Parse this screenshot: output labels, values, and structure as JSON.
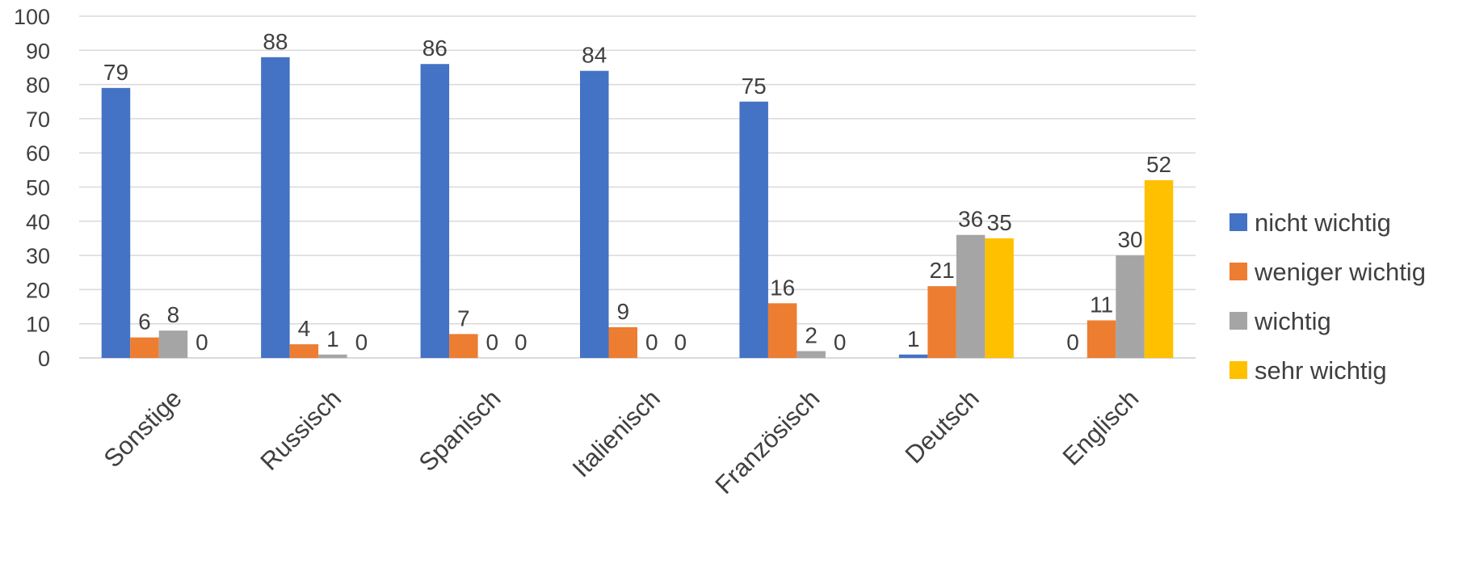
{
  "chart_data": {
    "type": "bar",
    "categories": [
      "Sonstige",
      "Russisch",
      "Spanisch",
      "Italienisch",
      "Französisch",
      "Deutsch",
      "Englisch"
    ],
    "series": [
      {
        "name": "nicht wichtig",
        "color": "#4472C4",
        "values": [
          79,
          88,
          86,
          84,
          75,
          1,
          0
        ]
      },
      {
        "name": "weniger wichtig",
        "color": "#ED7D31",
        "values": [
          6,
          4,
          7,
          9,
          16,
          21,
          11
        ]
      },
      {
        "name": "wichtig",
        "color": "#A5A5A5",
        "values": [
          8,
          1,
          0,
          0,
          2,
          36,
          30
        ]
      },
      {
        "name": "sehr wichtig",
        "color": "#FFC000",
        "values": [
          0,
          0,
          0,
          0,
          0,
          35,
          52
        ]
      }
    ],
    "yticks": [
      "0",
      "10",
      "20",
      "30",
      "40",
      "50",
      "60",
      "70",
      "80",
      "90",
      "100"
    ],
    "ylim": [
      0,
      100
    ],
    "grid": true,
    "legend_position": "right",
    "data_labels": true,
    "title": "",
    "xlabel": "",
    "ylabel": ""
  }
}
